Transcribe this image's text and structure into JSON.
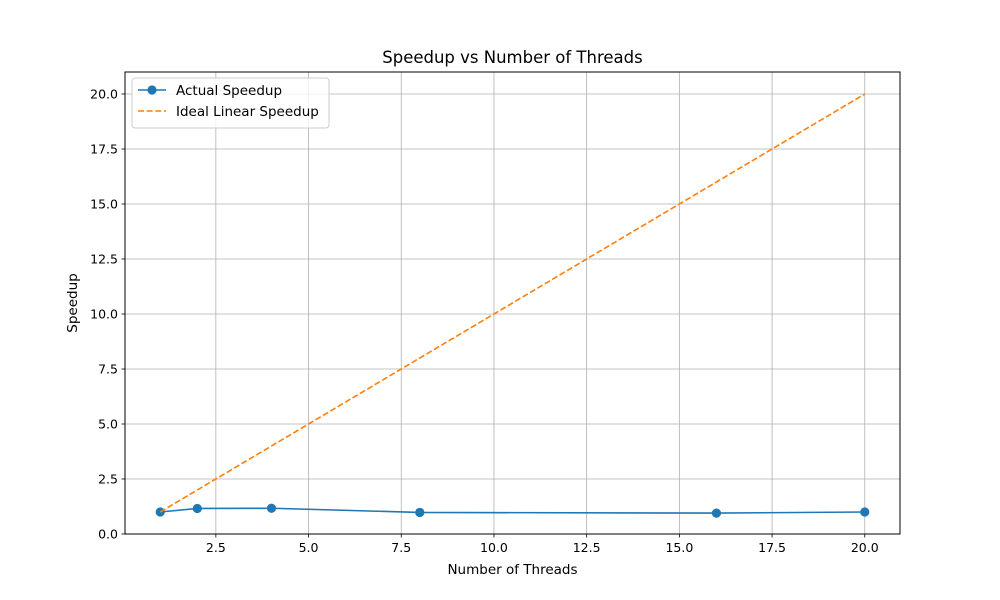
{
  "chart_data": {
    "type": "line",
    "title": "Speedup vs Number of Threads",
    "xlabel": "Number of Threads",
    "ylabel": "Speedup",
    "xlim": [
      0.05,
      20.95
    ],
    "ylim": [
      0,
      21
    ],
    "xticks": [
      2.5,
      5.0,
      7.5,
      10.0,
      12.5,
      15.0,
      17.5,
      20.0
    ],
    "xtick_labels": [
      "2.5",
      "5.0",
      "7.5",
      "10.0",
      "12.5",
      "15.0",
      "17.5",
      "20.0"
    ],
    "yticks": [
      0,
      2.5,
      5.0,
      7.5,
      10.0,
      12.5,
      15.0,
      17.5,
      20.0
    ],
    "ytick_labels": [
      "0.0",
      "2.5",
      "5.0",
      "7.5",
      "10.0",
      "12.5",
      "15.0",
      "17.5",
      "20.0"
    ],
    "grid": true,
    "legend_position": "top-left",
    "series": [
      {
        "name": "Actual Speedup",
        "color": "#1f77b4",
        "style": "solid",
        "marker": "circle",
        "x": [
          1,
          2,
          4,
          8,
          16,
          20
        ],
        "y": [
          1.0,
          1.16,
          1.17,
          0.98,
          0.95,
          1.0
        ]
      },
      {
        "name": "Ideal Linear Speedup",
        "color": "#ff7f0e",
        "style": "dashed",
        "marker": "none",
        "x": [
          1,
          20
        ],
        "y": [
          1,
          20
        ]
      }
    ]
  }
}
